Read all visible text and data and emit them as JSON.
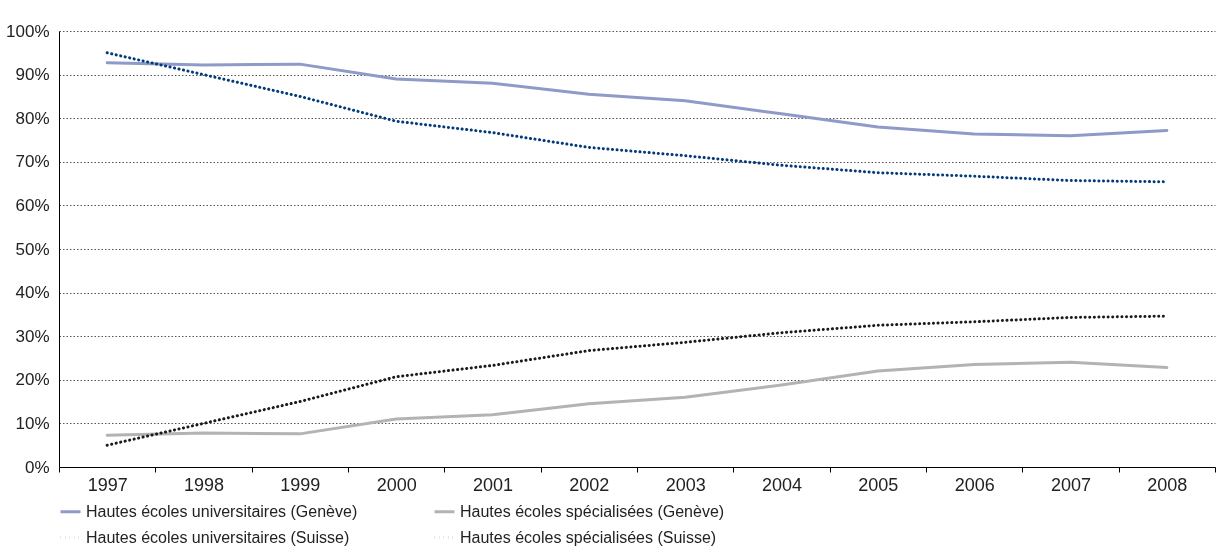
{
  "chart_data": {
    "type": "line",
    "categories": [
      "1997",
      "1998",
      "1999",
      "2000",
      "2001",
      "2002",
      "2003",
      "2004",
      "2005",
      "2006",
      "2007",
      "2008"
    ],
    "series": [
      {
        "name": "Hautes écoles universitaires (Genève)",
        "color": "#8e9ac8",
        "line_style": "solid",
        "values": [
          92.7,
          92.2,
          92.4,
          89,
          88,
          85.5,
          84,
          81,
          78,
          76.4,
          76,
          77.2
        ]
      },
      {
        "name": "Hautes écoles spécialisées (Genève)",
        "color": "#b3b3b3",
        "line_style": "solid",
        "values": [
          7.3,
          7.8,
          7.6,
          11,
          12,
          14.5,
          16,
          18.8,
          22,
          23.5,
          24,
          22.8
        ]
      },
      {
        "name": "Hautes écoles universitaires (Suisse)",
        "color": "#003a7a",
        "line_style": "dotted",
        "values": [
          95,
          90,
          85,
          79.3,
          76.7,
          73.3,
          71.4,
          69.2,
          67.5,
          66.7,
          65.7,
          65.4
        ]
      },
      {
        "name": "Hautes écoles spécialisées (Suisse)",
        "color": "#1a1a1a",
        "line_style": "dotted",
        "values": [
          5,
          10,
          15,
          20.7,
          23.3,
          26.7,
          28.6,
          30.8,
          32.5,
          33.3,
          34.3,
          34.6
        ]
      }
    ],
    "ylim": [
      0,
      100
    ],
    "yticks": [
      {
        "value": 0,
        "label": "0%"
      },
      {
        "value": 10,
        "label": "10%"
      },
      {
        "value": 20,
        "label": "20%"
      },
      {
        "value": 30,
        "label": "30%"
      },
      {
        "value": 40,
        "label": "40%"
      },
      {
        "value": 50,
        "label": "50%"
      },
      {
        "value": 60,
        "label": "60%"
      },
      {
        "value": 70,
        "label": "70%"
      },
      {
        "value": 80,
        "label": "80%"
      },
      {
        "value": 90,
        "label": "90%"
      },
      {
        "value": 100,
        "label": "100%"
      }
    ],
    "grid": "y",
    "legend": "bottom"
  }
}
